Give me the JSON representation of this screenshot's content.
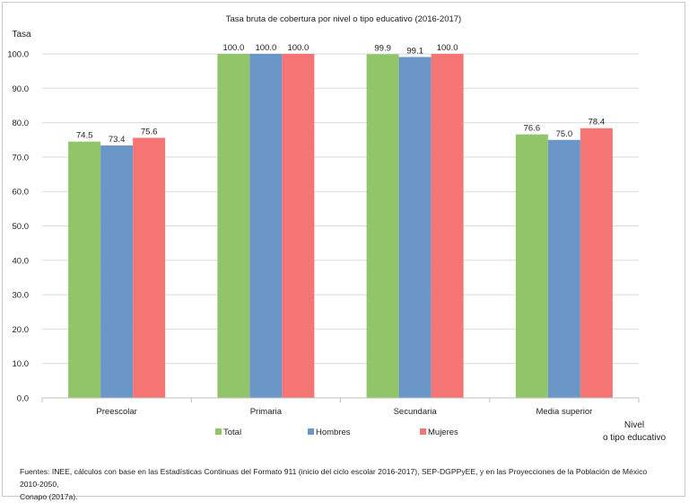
{
  "chart_data": {
    "type": "bar",
    "title": "Tasa bruta de cobertura por nivel  o tipo educativo (2016-2017)",
    "ylabel": "Tasa",
    "xlabel": "Nivel o tipo educativo",
    "xlabel_lines": [
      "Nivel",
      "o tipo educativo"
    ],
    "ylim": [
      0,
      100
    ],
    "yticks": [
      "0.0",
      "10.0",
      "20.0",
      "30.0",
      "40.0",
      "50.0",
      "60.0",
      "70.0",
      "80.0",
      "90.0",
      "100.0"
    ],
    "grid": true,
    "legend_position": "bottom",
    "categories": [
      "Preescolar",
      "Primaria",
      "Secundaria",
      "Media superior"
    ],
    "series": [
      {
        "name": "Total",
        "color": "#92c469",
        "values": [
          74.5,
          100.0,
          99.9,
          76.6
        ],
        "labels": [
          "74.5",
          "100.0",
          "99.9",
          "76.6"
        ]
      },
      {
        "name": "Hombres",
        "color": "#6a96c8",
        "values": [
          73.4,
          100.0,
          99.1,
          75.0
        ],
        "labels": [
          "73.4",
          "100.0",
          "99.1",
          "75.0"
        ]
      },
      {
        "name": "Mujeres",
        "color": "#f57474",
        "values": [
          75.6,
          100.0,
          100.0,
          78.4
        ],
        "labels": [
          "75.6",
          "100.0",
          "100.0",
          "78.4"
        ]
      }
    ]
  },
  "source": {
    "line1": "Fuentes: INEE, cálculos con base en las Estadísticas Continuas del Formato 911 (inicio del ciclo escolar 2016-2017), SEP-DGPPyEE, y en las Proyecciones de la Población de México 2010-2050,",
    "line2": "Conapo (2017a)."
  }
}
